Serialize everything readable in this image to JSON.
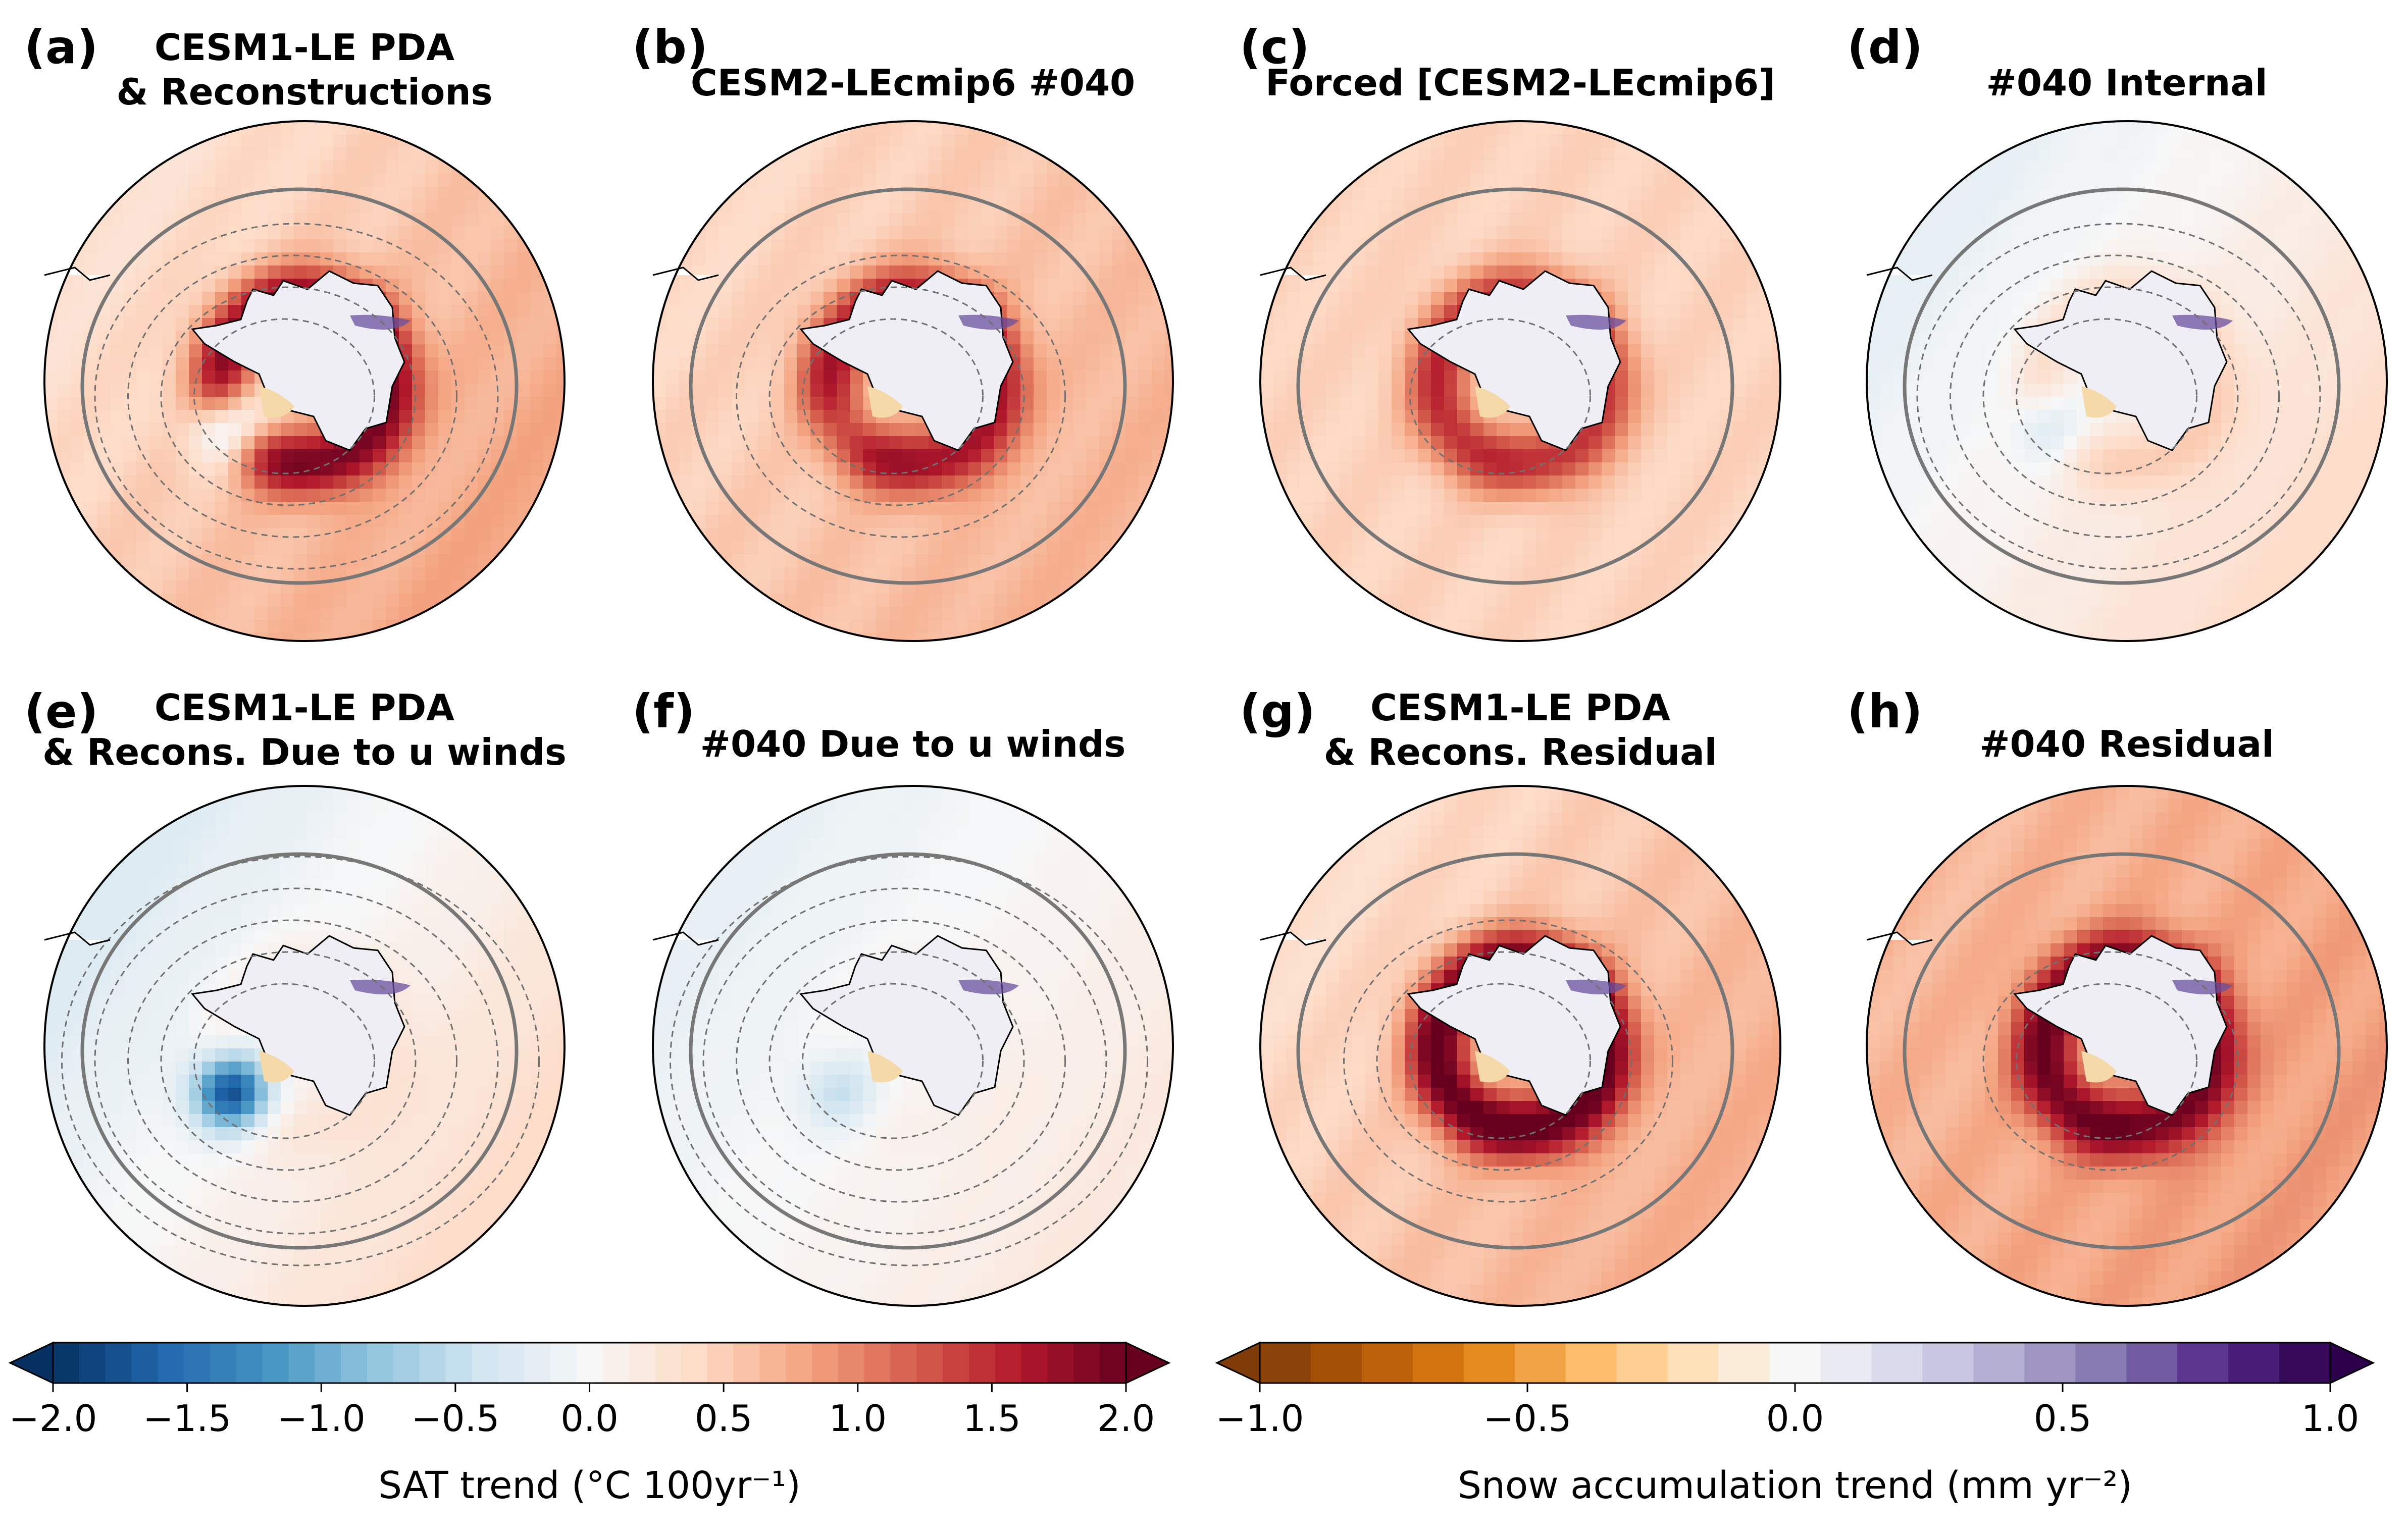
{
  "chart_data": {
    "type": "heatmap",
    "projection": "south-polar stereographic maps of Antarctica",
    "panels": [
      {
        "label": "(a)",
        "title_lines": [
          "CESM1-LE PDA",
          "& Reconstructions"
        ],
        "pattern": {
          "base": 0.55,
          "ring": 1.35,
          "asym": 0.25,
          "cold": 1.7,
          "contours": 4
        }
      },
      {
        "label": "(b)",
        "title_lines": [
          "CESM2-LEcmip6 #040"
        ],
        "pattern": {
          "base": 0.55,
          "ring": 1.15,
          "asym": 0.15,
          "cold": 0.3,
          "contours": 3
        }
      },
      {
        "label": "(c)",
        "title_lines": [
          "Forced [CESM2-LEcmip6]"
        ],
        "pattern": {
          "base": 0.45,
          "ring": 1.05,
          "asym": 0.0,
          "cold": 0.0,
          "contours": 1
        }
      },
      {
        "label": "(d)",
        "title_lines": [
          "#040 Internal"
        ],
        "pattern": {
          "base": 0.1,
          "ring": 0.35,
          "asym": 0.3,
          "cold": 0.6,
          "contours": 4
        }
      },
      {
        "label": "(e)",
        "title_lines": [
          "CESM1-LE PDA",
          "& Recons. Due to u winds"
        ],
        "pattern": {
          "base": 0.05,
          "ring": 0.15,
          "asym": 0.35,
          "cold": 1.9,
          "contours": 5
        }
      },
      {
        "label": "(f)",
        "title_lines": [
          "#040 Due to u winds"
        ],
        "pattern": {
          "base": 0.02,
          "ring": 0.05,
          "asym": 0.2,
          "cold": 0.5,
          "contours": 5
        }
      },
      {
        "label": "(g)",
        "title_lines": [
          "CESM1-LE PDA",
          "& Recons. Residual"
        ],
        "pattern": {
          "base": 0.55,
          "ring": 1.55,
          "asym": 0.2,
          "cold": 0.0,
          "contours": 3
        }
      },
      {
        "label": "(h)",
        "title_lines": [
          "#040 Residual"
        ],
        "pattern": {
          "base": 0.75,
          "ring": 1.25,
          "asym": 0.1,
          "cold": 0.0,
          "contours": 2
        }
      }
    ],
    "colorbars": [
      {
        "variable": "SAT trend",
        "label": "SAT trend (°C 100yr⁻¹)",
        "cmap": "RdBu_r",
        "range": [
          -2.0,
          2.0
        ],
        "levels": 41,
        "ticks": [
          "−2.0",
          "−1.5",
          "−1.0",
          "−0.5",
          "0.0",
          "0.5",
          "1.0",
          "1.5",
          "2.0"
        ],
        "extend": "both"
      },
      {
        "variable": "Snow accumulation trend",
        "label": "Snow accumulation trend (mm yr⁻²)",
        "cmap": "PuOr",
        "range": [
          -1.0,
          1.0
        ],
        "levels": 21,
        "ticks": [
          "−1.0",
          "−0.5",
          "0.0",
          "0.5",
          "1.0"
        ],
        "extend": "both"
      }
    ]
  }
}
